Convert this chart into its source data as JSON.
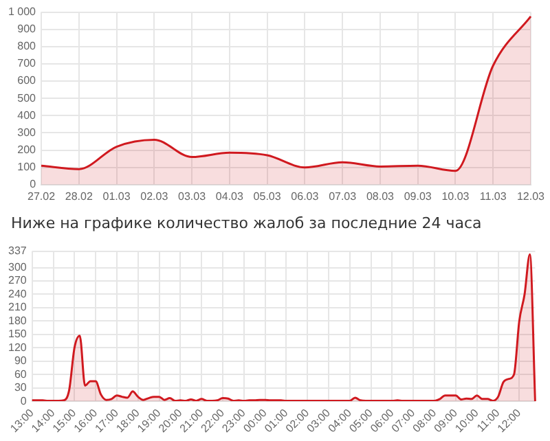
{
  "chart_data": [
    {
      "type": "area",
      "categories": [
        "27.02",
        "28.02",
        "01.03",
        "02.03",
        "03.03",
        "04.03",
        "05.03",
        "06.03",
        "07.03",
        "08.03",
        "09.03",
        "10.03",
        "11.03",
        "12.03"
      ],
      "series": [
        {
          "color": "#d0191f",
          "values": [
            110,
            90,
            220,
            260,
            160,
            185,
            170,
            100,
            130,
            105,
            110,
            80,
            690,
            975
          ]
        }
      ],
      "ylim": [
        0,
        1000
      ],
      "yticks": [
        0,
        100,
        200,
        300,
        400,
        500,
        600,
        700,
        800,
        900,
        {
          "value": 1000,
          "label": "1 000"
        }
      ],
      "grid": true,
      "legend": false,
      "marker": "none"
    },
    {
      "type": "area",
      "title": "Ниже на графике количество жалоб за последние 24 часа",
      "categories": [
        "13:00",
        null,
        null,
        null,
        "14:00",
        null,
        null,
        null,
        "15:00",
        null,
        null,
        null,
        "16:00",
        null,
        null,
        null,
        "17:00",
        null,
        null,
        null,
        "18:00",
        null,
        null,
        null,
        "19:00",
        null,
        null,
        null,
        "20:00",
        null,
        null,
        null,
        "21:00",
        null,
        null,
        null,
        "22:00",
        null,
        null,
        null,
        "23:00",
        null,
        null,
        null,
        "00:00",
        null,
        null,
        null,
        "01:00",
        null,
        null,
        null,
        "02:00",
        null,
        null,
        null,
        "03:00",
        null,
        null,
        null,
        "04:00",
        null,
        null,
        null,
        "05:00",
        null,
        null,
        null,
        "06:00",
        null,
        null,
        null,
        "07:00",
        null,
        null,
        null,
        "08:00",
        null,
        null,
        null,
        "09:00",
        null,
        null,
        null,
        "10:00",
        null,
        null,
        null,
        "11:00",
        null,
        null,
        null,
        "12:00",
        null,
        null,
        null
      ],
      "series": [
        {
          "color": "#d0191f",
          "values": [
            2,
            2,
            2,
            1,
            1,
            1,
            2,
            25,
            120,
            147,
            35,
            45,
            45,
            15,
            3,
            5,
            13,
            10,
            8,
            22,
            10,
            3,
            7,
            10,
            10,
            3,
            7,
            1,
            2,
            1,
            4,
            1,
            5,
            1,
            1,
            2,
            7,
            6,
            1,
            2,
            1,
            2,
            2,
            3,
            3,
            2,
            2,
            2,
            1,
            1,
            1,
            1,
            1,
            1,
            1,
            1,
            1,
            1,
            1,
            1,
            1,
            8,
            2,
            1,
            1,
            1,
            1,
            1,
            1,
            2,
            1,
            1,
            1,
            1,
            1,
            1,
            1,
            5,
            13,
            13,
            13,
            4,
            6,
            5,
            13,
            5,
            5,
            1,
            10,
            43,
            50,
            60,
            180,
            240,
            330,
            0
          ]
        }
      ],
      "ylim": [
        0,
        337
      ],
      "yticks": [
        0,
        30,
        60,
        90,
        120,
        150,
        180,
        210,
        240,
        270,
        300,
        337
      ],
      "grid": true,
      "legend": false,
      "marker": "none"
    }
  ]
}
